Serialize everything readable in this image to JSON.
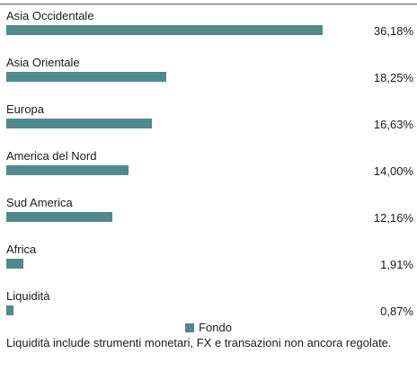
{
  "chart_data": {
    "type": "bar",
    "orientation": "horizontal",
    "categories": [
      "Asia Occidentale",
      "Asia Orientale",
      "Europa",
      "America del Nord",
      "Sud America",
      "Africa",
      "Liquidità"
    ],
    "values": [
      36.18,
      18.25,
      16.63,
      14.0,
      12.16,
      1.91,
      0.87
    ],
    "value_labels": [
      "36,18%",
      "18,25%",
      "16,63%",
      "14,00%",
      "12,16%",
      "1,91%",
      "0,87%"
    ],
    "series": [
      {
        "name": "Fondo",
        "color": "#4f8a8b",
        "values": [
          36.18,
          18.25,
          16.63,
          14.0,
          12.16,
          1.91,
          0.87
        ]
      }
    ],
    "legend_position": "bottom-center",
    "grid": false
  },
  "legend": {
    "label": "Fondo"
  },
  "footnote": "Liquidità include strumenti monetari, FX e transazioni non ancora regolate."
}
